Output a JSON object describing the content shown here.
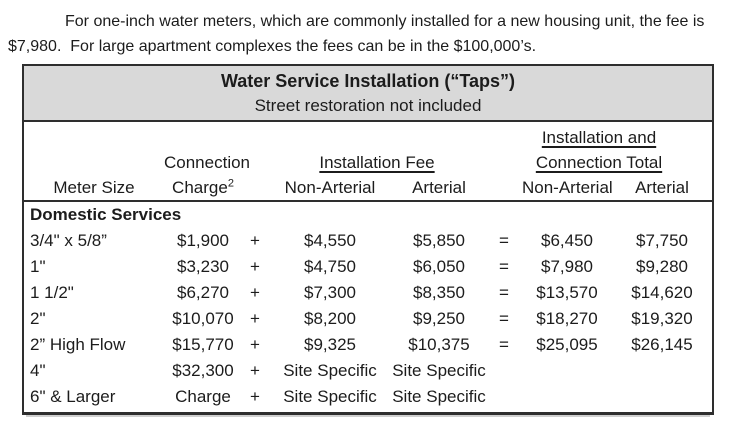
{
  "intro": {
    "lines": [
      "For one-inch water meters, which are commonly installed for a new housing unit, the fee is",
      "$7,980.  For large apartment complexes the fees can be in the $100,000’s."
    ]
  },
  "table": {
    "title": "Water Service Installation (“Taps”)",
    "subtitle": "Street restoration not included",
    "headers": {
      "meter_size": "Meter Size",
      "connection_line1": "Connection",
      "connection_line2": "Charge",
      "connection_sup": "2",
      "installation_fee": "Installation Fee",
      "total_line1": "Installation and",
      "total_line2": "Connection Total",
      "non_arterial": "Non-Arterial",
      "arterial": "Arterial"
    },
    "section_label": "Domestic Services",
    "rows": [
      {
        "meter_size": "3/4\" x 5/8”",
        "connection_charge": "$1,900",
        "plus": "+",
        "fee_non_arterial": "$4,550",
        "fee_arterial": "$5,850",
        "equals": "=",
        "total_non_arterial": "$6,450",
        "total_arterial": "$7,750"
      },
      {
        "meter_size": "1\"",
        "connection_charge": "$3,230",
        "plus": "+",
        "fee_non_arterial": "$4,750",
        "fee_arterial": "$6,050",
        "equals": "=",
        "total_non_arterial": "$7,980",
        "total_arterial": "$9,280"
      },
      {
        "meter_size": "1 1/2\"",
        "connection_charge": "$6,270",
        "plus": "+",
        "fee_non_arterial": "$7,300",
        "fee_arterial": "$8,350",
        "equals": "=",
        "total_non_arterial": "$13,570",
        "total_arterial": "$14,620"
      },
      {
        "meter_size": "2\"",
        "connection_charge": "$10,070",
        "plus": "+",
        "fee_non_arterial": "$8,200",
        "fee_arterial": "$9,250",
        "equals": "=",
        "total_non_arterial": "$18,270",
        "total_arterial": "$19,320"
      },
      {
        "meter_size": "2” High Flow",
        "connection_charge": "$15,770",
        "plus": "+",
        "fee_non_arterial": "$9,325",
        "fee_arterial": "$10,375",
        "equals": "=",
        "total_non_arterial": "$25,095",
        "total_arterial": "$26,145"
      },
      {
        "meter_size": "4\"",
        "connection_charge": "$32,300",
        "plus": "+",
        "fee_non_arterial": "Site Specific",
        "fee_arterial": "Site Specific",
        "equals": "",
        "total_non_arterial": "",
        "total_arterial": ""
      },
      {
        "meter_size": "6\" & Larger",
        "connection_charge": "Charge",
        "plus": "+",
        "fee_non_arterial": "Site Specific",
        "fee_arterial": "Site Specific",
        "equals": "",
        "total_non_arterial": "",
        "total_arterial": ""
      }
    ]
  }
}
